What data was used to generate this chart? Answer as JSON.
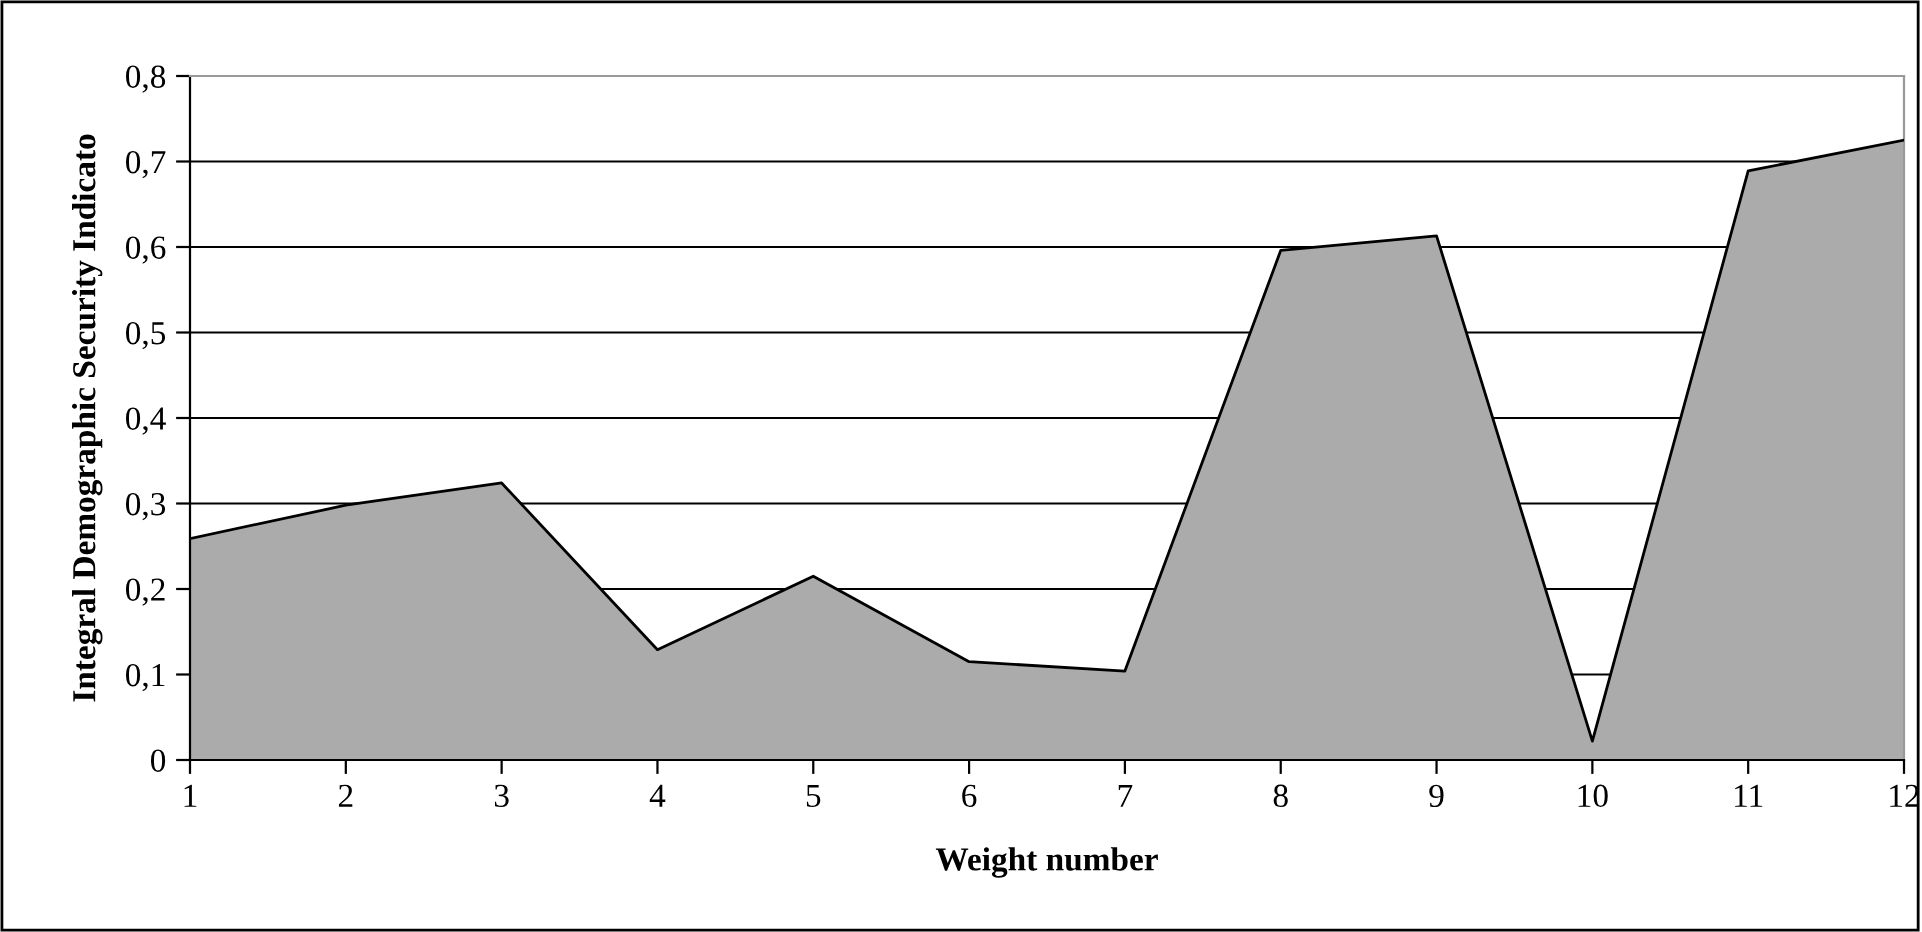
{
  "chart_data": {
    "type": "area",
    "xlabel": "Weight number",
    "ylabel": "Integral Demographic Security Indicato",
    "categories": [
      "1",
      "2",
      "3",
      "4",
      "5",
      "6",
      "7",
      "8",
      "9",
      "10",
      "11",
      "12"
    ],
    "series": [
      {
        "color": "#ababab",
        "values": [
          0.259,
          0.298,
          0.324,
          0.129,
          0.215,
          0.115,
          0.104,
          0.596,
          0.613,
          0.022,
          0.689,
          0.725
        ]
      }
    ],
    "ylim": [
      0,
      0.8
    ],
    "yticks": [
      {
        "value": 0,
        "label": "0"
      },
      {
        "value": 0.1,
        "label": "0,1"
      },
      {
        "value": 0.2,
        "label": "0,2"
      },
      {
        "value": 0.3,
        "label": "0,3"
      },
      {
        "value": 0.4,
        "label": "0,4"
      },
      {
        "value": 0.5,
        "label": "0,5"
      },
      {
        "value": 0.6,
        "label": "0,6"
      },
      {
        "value": 0.7,
        "label": "0,7"
      },
      {
        "value": 0.8,
        "label": "0,8"
      }
    ],
    "grid": "y"
  }
}
